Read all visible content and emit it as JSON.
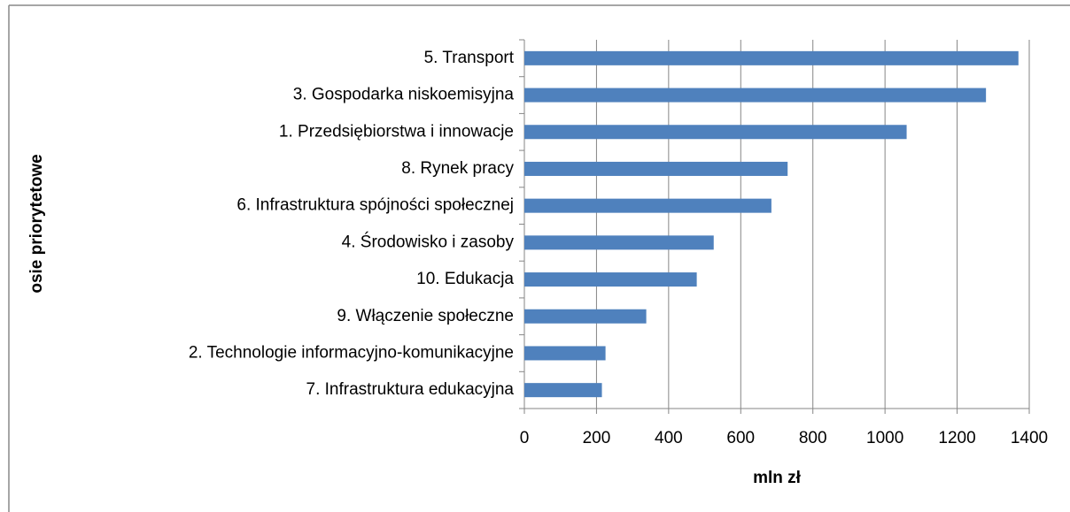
{
  "chart_data": {
    "type": "bar",
    "orientation": "horizontal",
    "xlabel": "mln zł",
    "ylabel": "osie priorytetowe",
    "categories": [
      "5. Transport",
      "3. Gospodarka niskoemisyjna",
      "1. Przedsiębiorstwa i innowacje",
      "8. Rynek pracy",
      "6. Infrastruktura spójności społecznej",
      "4. Środowisko i zasoby",
      "10. Edukacja",
      "9. Włączenie społeczne",
      "2. Technologie informacyjno-komunikacyjne",
      "7. Infrastruktura edukacyjna"
    ],
    "values": [
      1370,
      1280,
      1060,
      730,
      685,
      525,
      478,
      338,
      225,
      215
    ],
    "color": "#4f81bd",
    "xlim": [
      0,
      1400
    ],
    "xticks": [
      0,
      200,
      400,
      600,
      800,
      1000,
      1200,
      1400
    ],
    "grid": true
  }
}
